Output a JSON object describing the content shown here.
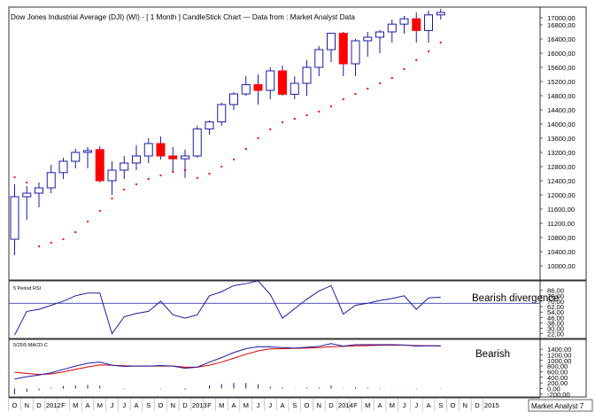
{
  "title": "Dow Jones Industrial Average (DJI) (WI) -  [ 1 Month ] CandleStick Chart — Data from : Market Analyst Data",
  "footer_brand": "Market Analyst 7",
  "colors": {
    "up": "#1a1aa8",
    "down": "#ff0000",
    "sar": "#ff0000",
    "rsi_line": "#1a1aa8",
    "level_line": "#1a1aa8",
    "macd_line": "#1a1aa8",
    "signal_line": "#dd0000",
    "grid": "#c8c8c8",
    "frame": "#000000",
    "axis_bg": "#ffffff"
  },
  "chart_data": [
    {
      "type": "candlestick",
      "name": "price",
      "x": [
        "O",
        "N",
        "D",
        "2012",
        "F",
        "M",
        "A",
        "M",
        "J",
        "J",
        "A",
        "S",
        "O",
        "N",
        "D",
        "2013",
        "F",
        "M",
        "A",
        "M",
        "J",
        "J",
        "A",
        "S",
        "O",
        "N",
        "D",
        "2014",
        "F",
        "M",
        "A",
        "M",
        "J",
        "J",
        "A",
        "S"
      ],
      "open": [
        10750,
        11950,
        12050,
        12200,
        12630,
        12950,
        13200,
        13280,
        12400,
        12700,
        12900,
        13100,
        13450,
        13100,
        13020,
        13100,
        13860,
        14060,
        14550,
        14850,
        15110,
        14950,
        15500,
        14840,
        15150,
        15600,
        16100,
        16560,
        15700,
        16350,
        16450,
        16600,
        16820,
        16970,
        16640,
        17080
      ],
      "high": [
        12300,
        12250,
        12350,
        12850,
        13050,
        13300,
        13350,
        13380,
        12950,
        13100,
        13400,
        13600,
        13650,
        13350,
        13280,
        13950,
        14100,
        14600,
        14900,
        15350,
        15400,
        15600,
        15650,
        15350,
        15800,
        16200,
        16550,
        16600,
        16400,
        16600,
        16650,
        16950,
        17050,
        17150,
        17200,
        17250
      ],
      "low": [
        10300,
        11300,
        11650,
        12050,
        12450,
        12750,
        12750,
        12350,
        12000,
        12450,
        12700,
        12900,
        13000,
        12650,
        12480,
        13050,
        13700,
        13950,
        14400,
        14800,
        14550,
        14700,
        14800,
        14700,
        14800,
        15350,
        15750,
        15350,
        15350,
        15900,
        16000,
        16300,
        16550,
        16300,
        16300,
        16950
      ],
      "close": [
        11950,
        12050,
        12200,
        12630,
        12950,
        13200,
        13250,
        12400,
        12700,
        12900,
        13100,
        13450,
        13100,
        13020,
        13100,
        13860,
        14060,
        14550,
        14850,
        15110,
        14950,
        15500,
        14840,
        15150,
        15600,
        16100,
        16560,
        15700,
        16350,
        16450,
        16600,
        16820,
        16970,
        16640,
        17080,
        17150
      ],
      "sar": [
        12500,
        12350,
        10550,
        10650,
        10750,
        10950,
        11250,
        11550,
        11900,
        12150,
        12300,
        12450,
        12550,
        12650,
        12700,
        12480,
        12600,
        12800,
        13000,
        13300,
        13600,
        13850,
        14050,
        14150,
        14250,
        14350,
        14500,
        14700,
        14850,
        15000,
        15150,
        15300,
        15550,
        15800,
        16050,
        16300
      ],
      "y_ticks": [
        10000,
        10400,
        10800,
        11200,
        11600,
        12000,
        12400,
        12800,
        13200,
        13600,
        14000,
        14400,
        14800,
        15200,
        15600,
        16000,
        16400,
        16800,
        17000
      ],
      "y_tick_labels": [
        "10000,00",
        "10400,00",
        "10800,00",
        "11200,00",
        "11600,00",
        "12000,00",
        "12400,00",
        "12800,00",
        "13200,00",
        "13600,00",
        "14000,00",
        "14400,00",
        "14800,00",
        "15200,00",
        "15600,00",
        "16000,00",
        "16400,00",
        "16800,00",
        "17000,00"
      ],
      "ylim": [
        9600,
        17300
      ],
      "grid": true
    },
    {
      "type": "line",
      "name": "rsi",
      "panel_label": "5 Period RSI",
      "values": [
        20,
        55,
        58,
        64,
        70,
        78,
        82,
        82,
        22,
        47,
        52,
        55,
        70,
        50,
        45,
        50,
        78,
        84,
        93,
        96,
        100,
        80,
        45,
        59,
        73,
        85,
        93,
        51,
        64,
        67,
        71,
        74,
        78,
        58,
        75,
        76
      ],
      "level": 67,
      "annotation": "Bearish divergence",
      "y_ticks": [
        22,
        30,
        38,
        46,
        54,
        62,
        70,
        78,
        86
      ],
      "y_tick_labels": [
        "22,00",
        "30,00",
        "38,00",
        "46,00",
        "54,00",
        "62,00",
        "70,00",
        "78,00",
        "86,00"
      ],
      "ylim": [
        15,
        100
      ]
    },
    {
      "type": "line",
      "name": "macd",
      "panel_label": "5/25/5 MACD-C",
      "macd": [
        340,
        420,
        480,
        560,
        680,
        800,
        900,
        940,
        830,
        790,
        800,
        800,
        820,
        800,
        720,
        760,
        940,
        1100,
        1280,
        1420,
        1490,
        1480,
        1460,
        1440,
        1470,
        1500,
        1600,
        1510,
        1560,
        1560,
        1560,
        1560,
        1550,
        1510,
        1520,
        1520
      ],
      "signal": [
        580,
        540,
        500,
        520,
        590,
        680,
        770,
        840,
        830,
        810,
        800,
        800,
        805,
        800,
        760,
        760,
        830,
        940,
        1080,
        1220,
        1340,
        1410,
        1420,
        1430,
        1440,
        1460,
        1490,
        1500,
        1520,
        1530,
        1540,
        1550,
        1545,
        1530,
        1520,
        1510
      ],
      "hist": [
        -200,
        -120,
        -60,
        30,
        90,
        110,
        130,
        100,
        0,
        -20,
        0,
        0,
        15,
        0,
        -40,
        0,
        110,
        160,
        200,
        200,
        150,
        70,
        40,
        10,
        30,
        40,
        110,
        10,
        40,
        30,
        20,
        10,
        5,
        -20,
        0,
        10
      ],
      "annotation": "Bearish",
      "y_ticks": [
        -200,
        0,
        200,
        400,
        600,
        800,
        1000,
        1200,
        1400
      ],
      "y_tick_labels": [
        "-200,00",
        "0,00",
        "200,00",
        "400,00",
        "600,00",
        "800,00",
        "1000,00",
        "1200,00",
        "1400,00"
      ],
      "ylim": [
        -300,
        1750
      ]
    }
  ],
  "x_axis": {
    "labels": [
      "O",
      "N",
      "D",
      "2012",
      "F",
      "M",
      "A",
      "M",
      "J",
      "J",
      "A",
      "S",
      "O",
      "N",
      "D",
      "2013",
      "F",
      "M",
      "A",
      "M",
      "J",
      "J",
      "A",
      "S",
      "O",
      "N",
      "D",
      "2014",
      "F",
      "M",
      "A",
      "M",
      "J",
      "J",
      "A",
      "S",
      "O",
      "N",
      "D",
      "2015"
    ]
  }
}
